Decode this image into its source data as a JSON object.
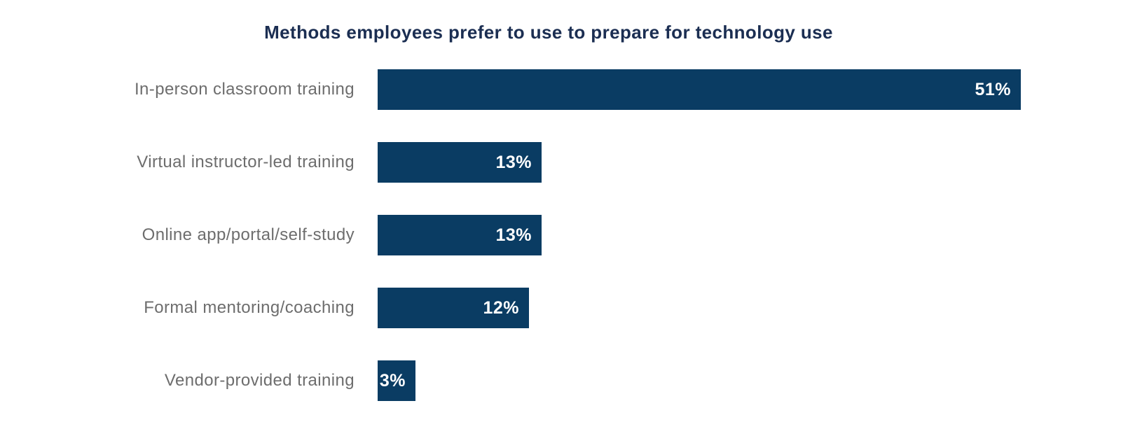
{
  "title": "Methods employees prefer to use to prepare for technology use",
  "colors": {
    "background": "#ffffff",
    "bar": "#0a3c63",
    "title_text": "#1b2e52",
    "category_label_text": "#6d6d6d",
    "value_label_text": "#ffffff"
  },
  "chart_data": {
    "type": "bar",
    "orientation": "horizontal",
    "title": "Methods employees prefer to use to prepare for technology use",
    "categories": [
      "In-person classroom training",
      "Virtual instructor-led training",
      "Online app/portal/self-study",
      "Formal mentoring/coaching",
      "Vendor-provided training"
    ],
    "values": [
      51,
      13,
      13,
      12,
      3
    ],
    "value_labels": [
      "51%",
      "13%",
      "13%",
      "12%",
      "3%"
    ],
    "value_suffix": "%",
    "value_label_position": "inside-end",
    "xlim": [
      0,
      51
    ],
    "grid": false,
    "legend": false,
    "axis_ticks": false
  }
}
